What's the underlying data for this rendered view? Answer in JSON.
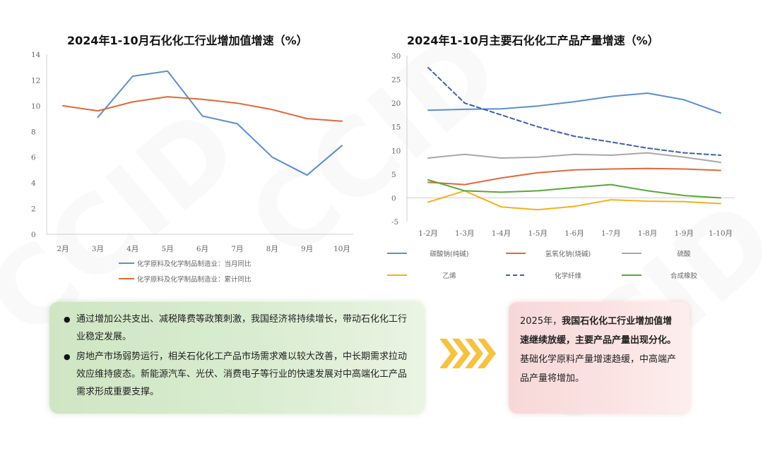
{
  "watermark": "CCID",
  "chart_data": [
    {
      "type": "line",
      "title": "2024年1-10月石化化工行业增加值增速（%）",
      "categories": [
        "2月",
        "3月",
        "4月",
        "5月",
        "6月",
        "7月",
        "8月",
        "9月",
        "10月"
      ],
      "ylim": [
        0,
        14
      ],
      "yticks": [
        0,
        2,
        4,
        6,
        8,
        10,
        12,
        14
      ],
      "grid": false,
      "legend_position": "bottom",
      "series": [
        {
          "name": "化学原料及化学制品制造业：当月同比",
          "color": "#5b8fd0",
          "dash": false,
          "values": [
            null,
            9.1,
            12.3,
            12.7,
            9.2,
            8.6,
            6.0,
            4.6,
            6.9
          ]
        },
        {
          "name": "化学原料及化学制品制造业：累计同比",
          "color": "#e0683a",
          "dash": false,
          "values": [
            10.0,
            9.6,
            10.3,
            10.7,
            10.5,
            10.2,
            9.7,
            9.0,
            8.8
          ]
        }
      ]
    },
    {
      "type": "line",
      "title": "2024年1-10月主要石化化工产品产量增速（%）",
      "categories": [
        "1-2月",
        "1-3月",
        "1-4月",
        "1-5月",
        "1-6月",
        "1-7月",
        "1-8月",
        "1-9月",
        "1-10月"
      ],
      "ylim": [
        -5,
        30
      ],
      "yticks": [
        -5,
        0,
        5,
        10,
        15,
        20,
        25,
        30
      ],
      "grid": false,
      "legend_position": "bottom",
      "series": [
        {
          "name": "碳酸钠(纯碱)",
          "color": "#5b8fd0",
          "dash": false,
          "values": [
            18.5,
            18.7,
            18.8,
            19.4,
            20.3,
            21.4,
            22.1,
            20.7,
            17.9
          ]
        },
        {
          "name": "氢氧化钠(烧碱)",
          "color": "#e0683a",
          "dash": false,
          "values": [
            3.3,
            2.8,
            4.2,
            5.3,
            5.9,
            6.1,
            6.2,
            6.1,
            5.8
          ]
        },
        {
          "name": "硫酸",
          "color": "#a8a8a8",
          "dash": false,
          "values": [
            8.4,
            9.2,
            8.4,
            8.6,
            9.2,
            9.0,
            9.5,
            8.6,
            7.5
          ]
        },
        {
          "name": "乙烯",
          "color": "#f2b21c",
          "dash": false,
          "values": [
            -0.9,
            1.5,
            -1.9,
            -2.5,
            -1.8,
            -0.4,
            -0.7,
            -0.8,
            -1.2
          ]
        },
        {
          "name": "化学纤维",
          "color": "#3f5fae",
          "dash": true,
          "values": [
            27.5,
            20.0,
            17.5,
            15.0,
            13.0,
            11.8,
            10.5,
            9.5,
            9.0
          ]
        },
        {
          "name": "合成橡胶",
          "color": "#5aa63c",
          "dash": false,
          "values": [
            3.8,
            1.5,
            1.2,
            1.5,
            2.2,
            2.8,
            1.5,
            0.5,
            0.0
          ]
        }
      ]
    }
  ],
  "left_box": {
    "bullets": [
      "通过增加公共支出、减税降费等政策刺激，我国经济将持续增长，带动石化化工行业稳定发展。",
      "房地产市场弱势运行，相关石化化工产品市场需求难以较大改善，中长期需求拉动效应维持疲态。新能源汽车、光伏、消费电子等行业的快速发展对中高端化工产品需求形成重要支撑。"
    ]
  },
  "right_box": {
    "lead": "2025年，",
    "bold1": "我国石化化工行业增加值增速继续放缓，主要产品产量出现分化。",
    "tail": "基础化学原料产量增速趋缓，中高端产品产量将增加。"
  },
  "colors": {
    "left_box": "#d6eacc",
    "right_box": "#fbe0e0",
    "arrow": "#f5c242"
  }
}
